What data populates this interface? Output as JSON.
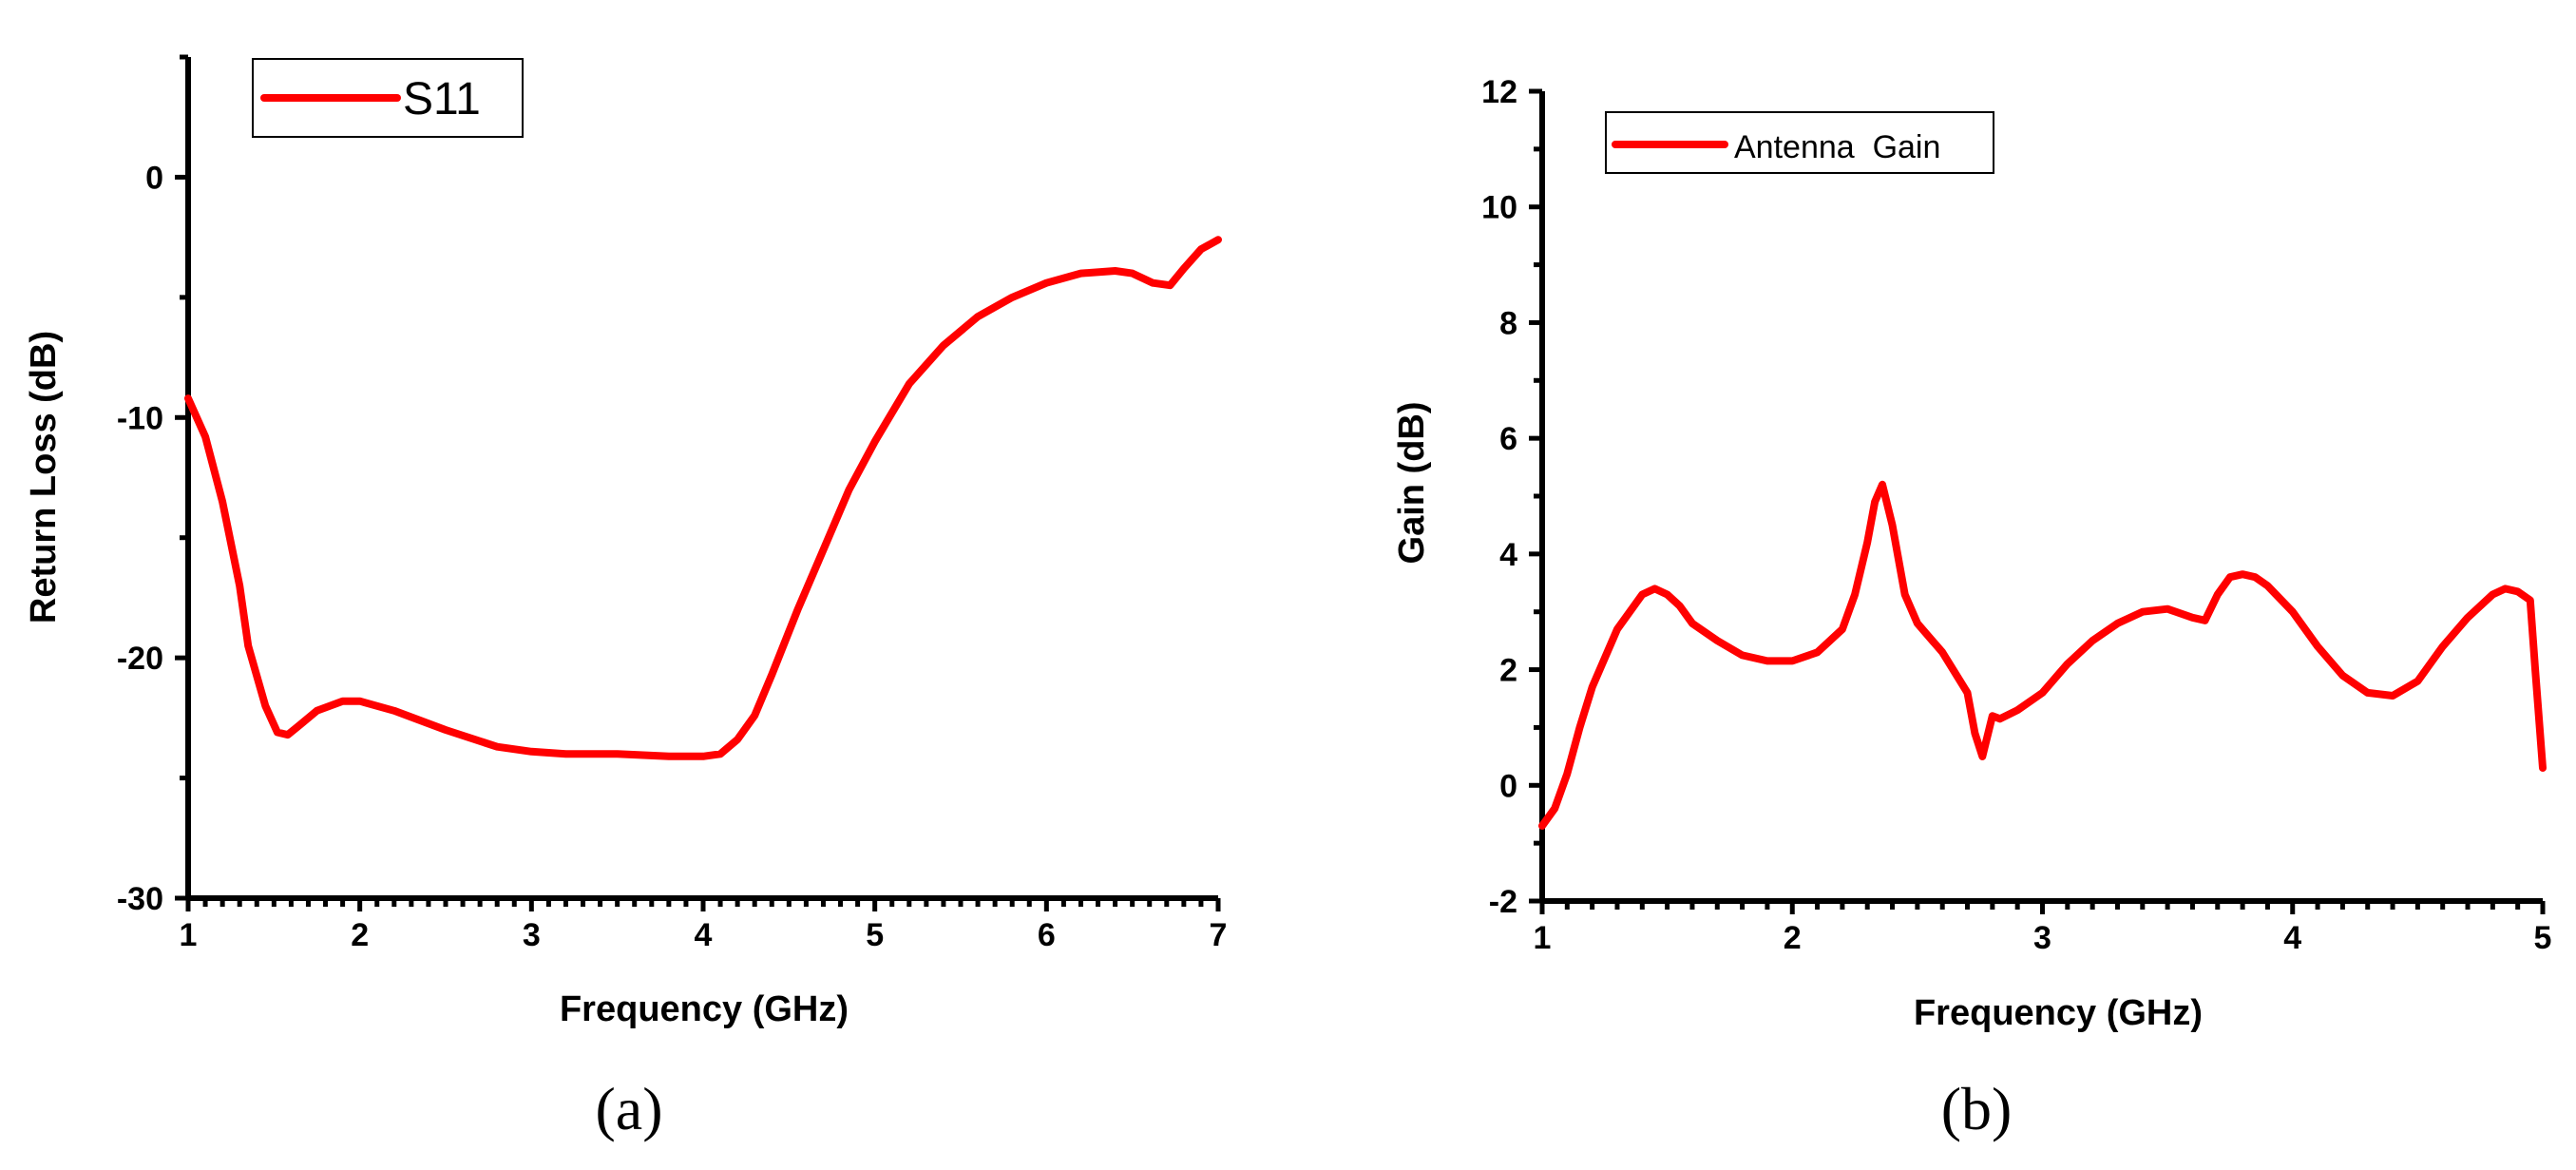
{
  "chart_data": [
    {
      "type": "line",
      "title": "",
      "xlabel": "Frequency (GHz)",
      "ylabel": "Return Loss (dB)",
      "xlim": [
        1,
        7
      ],
      "ylim": [
        -30,
        5
      ],
      "xticks": [
        1,
        2,
        3,
        4,
        5,
        6,
        7
      ],
      "yticks": [
        -30,
        -20,
        -10,
        0
      ],
      "xtick_labels": [
        "1",
        "2",
        "3",
        "4",
        "5",
        "6",
        "7"
      ],
      "ytick_labels": [
        "-30",
        "-20",
        "-10",
        "0"
      ],
      "grid": false,
      "legend_position": "top-left",
      "caption": "(a)",
      "series": [
        {
          "name": "S11",
          "color": "#ff0000",
          "x": [
            1.0,
            1.1,
            1.2,
            1.3,
            1.35,
            1.45,
            1.52,
            1.58,
            1.65,
            1.75,
            1.9,
            2.0,
            2.2,
            2.5,
            2.8,
            3.0,
            3.2,
            3.5,
            3.8,
            4.0,
            4.1,
            4.2,
            4.3,
            4.4,
            4.55,
            4.7,
            4.85,
            5.0,
            5.2,
            5.4,
            5.6,
            5.8,
            6.0,
            6.2,
            6.4,
            6.5,
            6.62,
            6.72,
            6.8,
            6.9,
            7.0
          ],
          "y": [
            -9.2,
            -10.8,
            -13.5,
            -17.0,
            -19.5,
            -22.0,
            -23.1,
            -23.2,
            -22.8,
            -22.2,
            -21.8,
            -21.8,
            -22.2,
            -23.0,
            -23.7,
            -23.9,
            -24.0,
            -24.0,
            -24.1,
            -24.1,
            -24.0,
            -23.4,
            -22.4,
            -20.7,
            -18.0,
            -15.5,
            -13.0,
            -11.0,
            -8.6,
            -7.0,
            -5.8,
            -5.0,
            -4.4,
            -4.0,
            -3.9,
            -4.0,
            -4.4,
            -4.5,
            -3.8,
            -3.0,
            -2.6
          ]
        }
      ]
    },
    {
      "type": "line",
      "title": "",
      "xlabel": "Frequency (GHz)",
      "ylabel": "Gain (dB)",
      "xlim": [
        1,
        5
      ],
      "ylim": [
        -2,
        12
      ],
      "xticks": [
        1,
        2,
        3,
        4,
        5
      ],
      "yticks": [
        -2,
        0,
        2,
        4,
        6,
        8,
        10,
        12
      ],
      "xtick_labels": [
        "1",
        "2",
        "3",
        "4",
        "5"
      ],
      "ytick_labels": [
        "-2",
        "0",
        "2",
        "4",
        "6",
        "8",
        "10",
        "12"
      ],
      "grid": false,
      "legend_position": "top-left",
      "caption": "(b)",
      "series": [
        {
          "name": "Antenna  Gain",
          "color": "#ff0000",
          "x": [
            1.0,
            1.05,
            1.1,
            1.15,
            1.2,
            1.3,
            1.4,
            1.45,
            1.5,
            1.55,
            1.6,
            1.7,
            1.8,
            1.9,
            2.0,
            2.1,
            2.2,
            2.25,
            2.3,
            2.33,
            2.36,
            2.4,
            2.45,
            2.5,
            2.6,
            2.7,
            2.73,
            2.76,
            2.8,
            2.83,
            2.9,
            3.0,
            3.1,
            3.2,
            3.3,
            3.4,
            3.5,
            3.6,
            3.65,
            3.7,
            3.75,
            3.8,
            3.85,
            3.9,
            4.0,
            4.1,
            4.2,
            4.3,
            4.4,
            4.5,
            4.6,
            4.7,
            4.8,
            4.85,
            4.9,
            4.95,
            4.97,
            5.0
          ],
          "y": [
            -0.7,
            -0.4,
            0.2,
            1.0,
            1.7,
            2.7,
            3.3,
            3.4,
            3.3,
            3.1,
            2.8,
            2.5,
            2.25,
            2.15,
            2.15,
            2.3,
            2.7,
            3.3,
            4.2,
            4.9,
            5.2,
            4.5,
            3.3,
            2.8,
            2.3,
            1.6,
            0.9,
            0.5,
            1.2,
            1.15,
            1.3,
            1.6,
            2.1,
            2.5,
            2.8,
            3.0,
            3.05,
            2.9,
            2.85,
            3.3,
            3.6,
            3.65,
            3.6,
            3.45,
            3.0,
            2.4,
            1.9,
            1.6,
            1.55,
            1.8,
            2.4,
            2.9,
            3.3,
            3.4,
            3.35,
            3.2,
            2.0,
            0.3
          ]
        }
      ]
    }
  ]
}
